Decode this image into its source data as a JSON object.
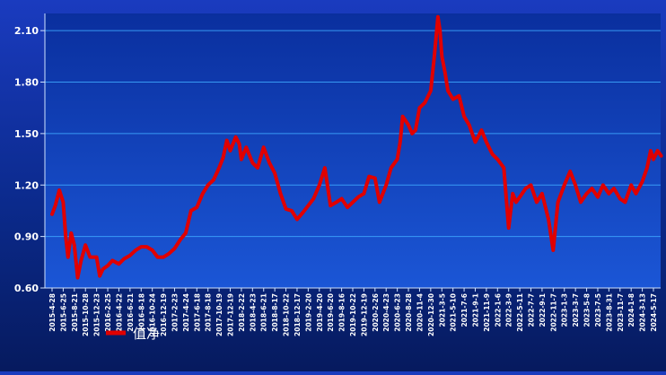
{
  "colors": {
    "line": "#e00000",
    "grid": "#3fa9ff",
    "axis": "#cfe3ff",
    "text": "#ffffff",
    "plot_top": "#0a2f9e",
    "plot_bottom": "#1b56d6"
  },
  "chart_data": {
    "type": "line",
    "title": "",
    "xlabel": "",
    "ylabel": "",
    "ylim": [
      0.6,
      2.2
    ],
    "yticks": [
      0.6,
      0.9,
      1.2,
      1.5,
      1.8,
      2.1
    ],
    "ytick_labels": [
      "0.60",
      "0.90",
      "1.20",
      "1.50",
      "1.80",
      "2.10"
    ],
    "grid": true,
    "legend": {
      "position": "bottom-left"
    },
    "xtick_labels": [
      "2015-4-28",
      "2015-6-25",
      "2015-8-21",
      "2015-10-28",
      "2015-12-23",
      "2016-2-25",
      "2016-4-22",
      "2016-6-21",
      "2016-8-18",
      "2016-10-24",
      "2016-12-19",
      "2017-2-23",
      "2017-4-24",
      "2017-6-18",
      "2017-8-18",
      "2017-10-19",
      "2017-12-19",
      "2018-2-22",
      "2018-4-23",
      "2018-6-21",
      "2018-8-17",
      "2018-10-22",
      "2018-12-17",
      "2019-2-20",
      "2019-4-20",
      "2019-6-20",
      "2019-8-16",
      "2019-10-22",
      "2019-12-19",
      "2020-2-26",
      "2020-4-23",
      "2020-6-23",
      "2020-8-28",
      "2020-11-4",
      "2020-12-30",
      "2021-3-5",
      "2021-5-10",
      "2021-7-6",
      "2021-9-1",
      "2021-11-9",
      "2022-1-6",
      "2022-3-9",
      "2022-5-11",
      "2022-7-7",
      "2022-9-1",
      "2022-11-7",
      "2023-1-3",
      "2023-3-7",
      "2023-5-8",
      "2023-7-5",
      "2023-8-31",
      "2023-11-7",
      "2024-1-8",
      "2024-3-13",
      "2024-5-17"
    ],
    "series": [
      {
        "name": "值净",
        "x": [
          "2015-4-28",
          "2015-5-15",
          "2015-6-5",
          "2015-6-25",
          "2015-7-8",
          "2015-7-20",
          "2015-8-5",
          "2015-8-21",
          "2015-9-10",
          "2015-10-1",
          "2015-10-28",
          "2015-11-20",
          "2015-12-23",
          "2016-1-10",
          "2016-1-28",
          "2016-2-25",
          "2016-3-20",
          "2016-4-22",
          "2016-5-20",
          "2016-6-21",
          "2016-7-20",
          "2016-8-18",
          "2016-9-20",
          "2016-10-24",
          "2016-11-20",
          "2016-12-19",
          "2017-1-20",
          "2017-2-23",
          "2017-3-25",
          "2017-4-24",
          "2017-5-20",
          "2017-6-18",
          "2017-7-20",
          "2017-8-18",
          "2017-9-18",
          "2017-10-19",
          "2017-11-10",
          "2017-11-30",
          "2017-12-19",
          "2018-1-20",
          "2018-2-10",
          "2018-2-22",
          "2018-3-20",
          "2018-4-23",
          "2018-5-20",
          "2018-6-21",
          "2018-7-20",
          "2018-8-17",
          "2018-9-20",
          "2018-10-22",
          "2018-11-20",
          "2018-12-17",
          "2019-1-20",
          "2019-2-20",
          "2019-3-20",
          "2019-4-20",
          "2019-5-20",
          "2019-6-20",
          "2019-7-20",
          "2019-8-16",
          "2019-9-20",
          "2019-10-22",
          "2019-11-20",
          "2019-12-19",
          "2020-1-20",
          "2020-2-26",
          "2020-3-20",
          "2020-4-23",
          "2020-5-20",
          "2020-6-23",
          "2020-7-10",
          "2020-7-25",
          "2020-8-28",
          "2020-9-20",
          "2020-10-10",
          "2020-11-4",
          "2020-12-1",
          "2020-12-30",
          "2021-1-20",
          "2021-2-10",
          "2021-2-22",
          "2021-3-5",
          "2021-3-25",
          "2021-4-10",
          "2021-5-10",
          "2021-6-10",
          "2021-7-6",
          "2021-8-1",
          "2021-9-1",
          "2021-10-10",
          "2021-11-9",
          "2021-12-10",
          "2022-1-6",
          "2022-2-10",
          "2022-3-9",
          "2022-4-1",
          "2022-4-20",
          "2022-5-11",
          "2022-6-10",
          "2022-7-7",
          "2022-8-5",
          "2022-9-1",
          "2022-10-10",
          "2022-11-7",
          "2022-12-1",
          "2023-1-3",
          "2023-2-5",
          "2023-3-7",
          "2023-4-5",
          "2023-5-8",
          "2023-6-5",
          "2023-7-5",
          "2023-8-1",
          "2023-8-31",
          "2023-10-1",
          "2023-11-7",
          "2023-12-5",
          "2024-1-8",
          "2024-2-5",
          "2024-3-13",
          "2024-4-10",
          "2024-5-1",
          "2024-5-17",
          "2024-6-10",
          "2024-7-1"
        ],
        "values": [
          1.03,
          1.08,
          1.17,
          1.1,
          0.9,
          0.78,
          0.92,
          0.85,
          0.66,
          0.76,
          0.85,
          0.78,
          0.78,
          0.67,
          0.71,
          0.73,
          0.76,
          0.74,
          0.77,
          0.79,
          0.82,
          0.84,
          0.84,
          0.82,
          0.78,
          0.78,
          0.8,
          0.83,
          0.88,
          0.92,
          1.05,
          1.07,
          1.15,
          1.2,
          1.23,
          1.3,
          1.36,
          1.46,
          1.4,
          1.48,
          1.44,
          1.35,
          1.42,
          1.33,
          1.3,
          1.42,
          1.33,
          1.27,
          1.15,
          1.06,
          1.05,
          1.0,
          1.04,
          1.08,
          1.12,
          1.2,
          1.3,
          1.08,
          1.1,
          1.12,
          1.07,
          1.1,
          1.13,
          1.15,
          1.25,
          1.24,
          1.1,
          1.2,
          1.3,
          1.35,
          1.45,
          1.6,
          1.55,
          1.5,
          1.52,
          1.65,
          1.68,
          1.75,
          1.95,
          2.18,
          2.1,
          1.95,
          1.85,
          1.75,
          1.7,
          1.72,
          1.6,
          1.55,
          1.45,
          1.52,
          1.45,
          1.38,
          1.35,
          1.3,
          0.95,
          1.15,
          1.1,
          1.13,
          1.18,
          1.2,
          1.1,
          1.15,
          1.0,
          0.82,
          1.1,
          1.2,
          1.28,
          1.2,
          1.1,
          1.15,
          1.18,
          1.13,
          1.2,
          1.15,
          1.18,
          1.12,
          1.1,
          1.2,
          1.15,
          1.22,
          1.3,
          1.4,
          1.35,
          1.4,
          1.37
        ]
      }
    ]
  }
}
